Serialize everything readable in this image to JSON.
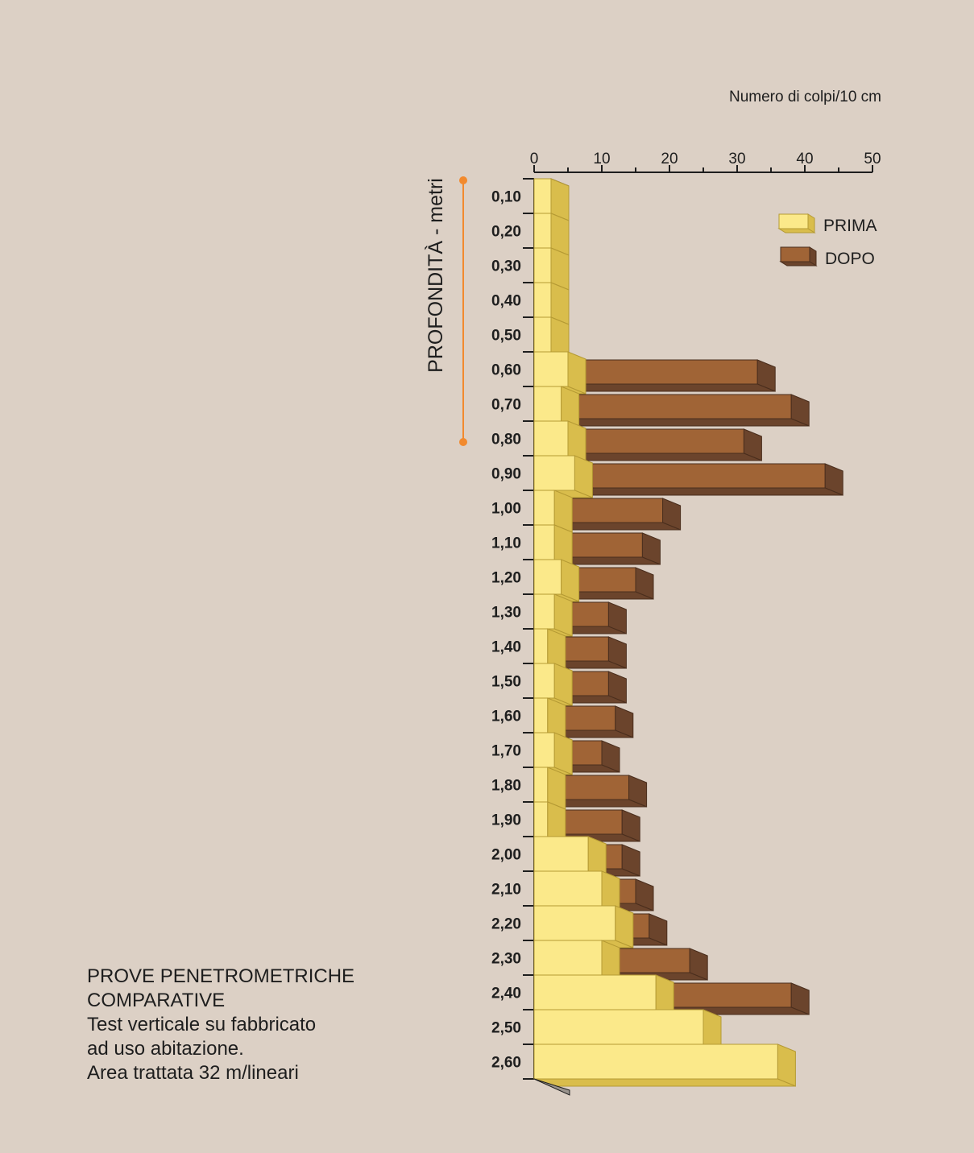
{
  "chart_data": {
    "type": "bar",
    "orientation": "horizontal",
    "stacked_overlay": true,
    "xlabel": "Numero di colpi/10 cm",
    "ylabel": "PROFONDITÀ - metri",
    "xlim": [
      0,
      50
    ],
    "xticks": [
      "0",
      "10",
      "20",
      "30",
      "40",
      "50"
    ],
    "categories": [
      "0,10",
      "0,20",
      "0,30",
      "0,40",
      "0,50",
      "0,60",
      "0,70",
      "0,80",
      "0,90",
      "1,00",
      "1,10",
      "1,20",
      "1,30",
      "1,40",
      "1,50",
      "1,60",
      "1,70",
      "1,80",
      "1,90",
      "2,00",
      "2,10",
      "2,20",
      "2,30",
      "2,40",
      "2,50",
      "2,60"
    ],
    "series": [
      {
        "name": "PRIMA",
        "color": "#fbe98a",
        "values": [
          2.5,
          2.5,
          2.5,
          2.5,
          2.5,
          5,
          4,
          5,
          6,
          3,
          3,
          4,
          3,
          2,
          3,
          2,
          3,
          2,
          2,
          8,
          10,
          12,
          10,
          18,
          25,
          36
        ]
      },
      {
        "name": "DOPO",
        "color": "#a06436",
        "values": [
          2.5,
          2.5,
          2.5,
          2.5,
          2.5,
          33,
          38,
          31,
          43,
          19,
          16,
          15,
          11,
          11,
          11,
          12,
          10,
          14,
          13,
          13,
          15,
          17,
          23,
          38,
          0,
          0
        ]
      }
    ],
    "legend_position": "top-right",
    "depth_marker_color": "#f28a2e"
  },
  "caption": {
    "line1": "PROVE PENETROMETRICHE",
    "line2": "COMPARATIVE",
    "line3": "Test verticale su fabbricato",
    "line4": "ad uso abitazione.",
    "line5": "Area trattata 32 m/lineari"
  }
}
